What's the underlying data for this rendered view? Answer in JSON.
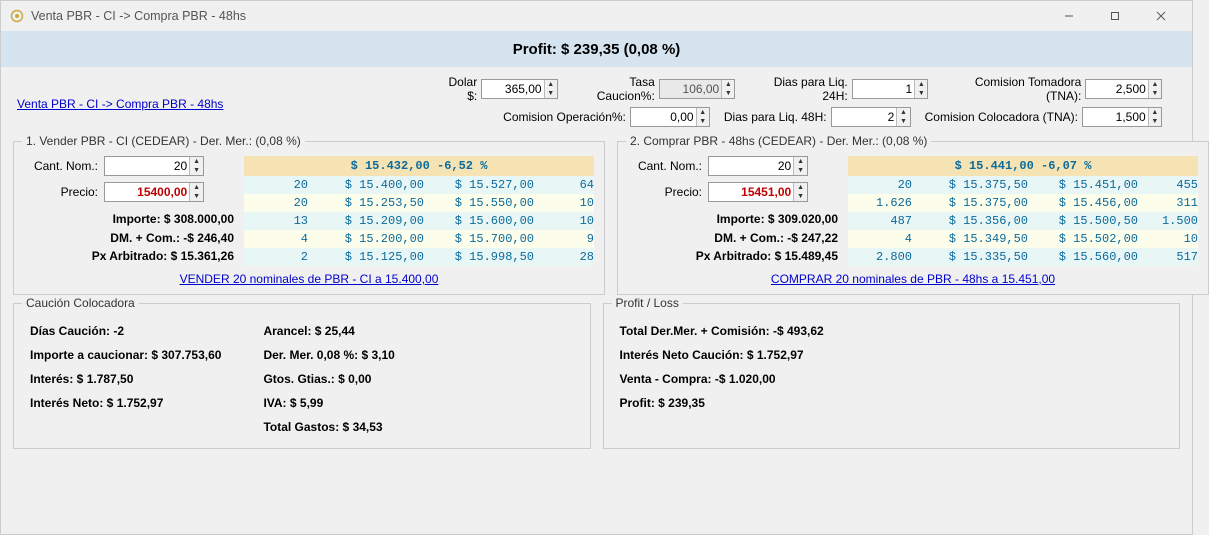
{
  "window": {
    "title": "Venta PBR - CI -> Compra PBR - 48hs"
  },
  "profit_banner": "Profit: $ 239,35 (0,08 %)",
  "top_link": "Venta PBR - CI -> Compra PBR - 48hs",
  "params": {
    "dolar_label": "Dolar $:",
    "dolar_value": "365,00",
    "tasa_label": "Tasa Caucion%:",
    "tasa_value": "106,00",
    "com_op_label": "Comision Operación%:",
    "com_op_value": "0,00",
    "dias24_label": "Dias para Liq. 24H:",
    "dias24_value": "1",
    "dias48_label": "Dias para Liq. 48H:",
    "dias48_value": "2",
    "com_tom_label": "Comision Tomadora (TNA):",
    "com_tom_value": "2,500",
    "com_col_label": "Comision Colocadora (TNA):",
    "com_col_value": "1,500"
  },
  "sell": {
    "group_title": "1. Vender PBR - CI (CEDEAR) - Der. Mer.: (0,08 %)",
    "cant_label": "Cant. Nom.:",
    "cant_value": "20",
    "precio_label": "Precio:",
    "precio_value": "15400,00",
    "importe": "Importe: $ 308.000,00",
    "dm_com": "DM. + Com.: -$ 246,40",
    "px_arb": "Px Arbitrado: $ 15.361,26",
    "depth_header": "$ 15.432,00 -6,52 %",
    "rows": [
      {
        "q1": "20",
        "bid": "$ 15.400,00",
        "ask": "$ 15.527,00",
        "q2": "64"
      },
      {
        "q1": "20",
        "bid": "$ 15.253,50",
        "ask": "$ 15.550,00",
        "q2": "10"
      },
      {
        "q1": "13",
        "bid": "$ 15.209,00",
        "ask": "$ 15.600,00",
        "q2": "10"
      },
      {
        "q1": "4",
        "bid": "$ 15.200,00",
        "ask": "$ 15.700,00",
        "q2": "9"
      },
      {
        "q1": "2",
        "bid": "$ 15.125,00",
        "ask": "$ 15.998,50",
        "q2": "28"
      }
    ],
    "action_link": "VENDER 20 nominales de PBR - CI a 15.400,00"
  },
  "buy": {
    "group_title": "2. Comprar PBR - 48hs (CEDEAR) - Der. Mer.: (0,08 %)",
    "cant_label": "Cant. Nom.:",
    "cant_value": "20",
    "precio_label": "Precio:",
    "precio_value": "15451,00",
    "importe": "Importe: $ 309.020,00",
    "dm_com": "DM. + Com.: -$ 247,22",
    "px_arb": "Px Arbitrado: $ 15.489,45",
    "depth_header": "$ 15.441,00 -6,07 %",
    "rows": [
      {
        "q1": "20",
        "bid": "$ 15.375,50",
        "ask": "$ 15.451,00",
        "q2": "455"
      },
      {
        "q1": "1.626",
        "bid": "$ 15.375,00",
        "ask": "$ 15.456,00",
        "q2": "311"
      },
      {
        "q1": "487",
        "bid": "$ 15.356,00",
        "ask": "$ 15.500,50",
        "q2": "1.500"
      },
      {
        "q1": "4",
        "bid": "$ 15.349,50",
        "ask": "$ 15.502,00",
        "q2": "10"
      },
      {
        "q1": "2.800",
        "bid": "$ 15.335,50",
        "ask": "$ 15.560,00",
        "q2": "517"
      }
    ],
    "action_link": "COMPRAR 20 nominales de PBR - 48hs a 15.451,00"
  },
  "caucion": {
    "title": "Caución Colocadora",
    "left": [
      "Días Caución: -2",
      "Importe a caucionar: $ 307.753,60",
      "Interés: $ 1.787,50",
      "Interés Neto: $ 1.752,97"
    ],
    "right": [
      "Arancel: $ 25,44",
      "Der. Mer. 0,08 %: $ 3,10",
      "Gtos. Gtias.: $ 0,00",
      "IVA: $ 5,99",
      "Total Gastos: $ 34,53"
    ]
  },
  "pl": {
    "title": "Profit / Loss",
    "lines": [
      "Total Der.Mer. + Comisión: -$ 493,62",
      "Interés Neto Caución: $ 1.752,97",
      "Venta - Compra: -$ 1.020,00",
      "Profit: $ 239,35"
    ]
  }
}
